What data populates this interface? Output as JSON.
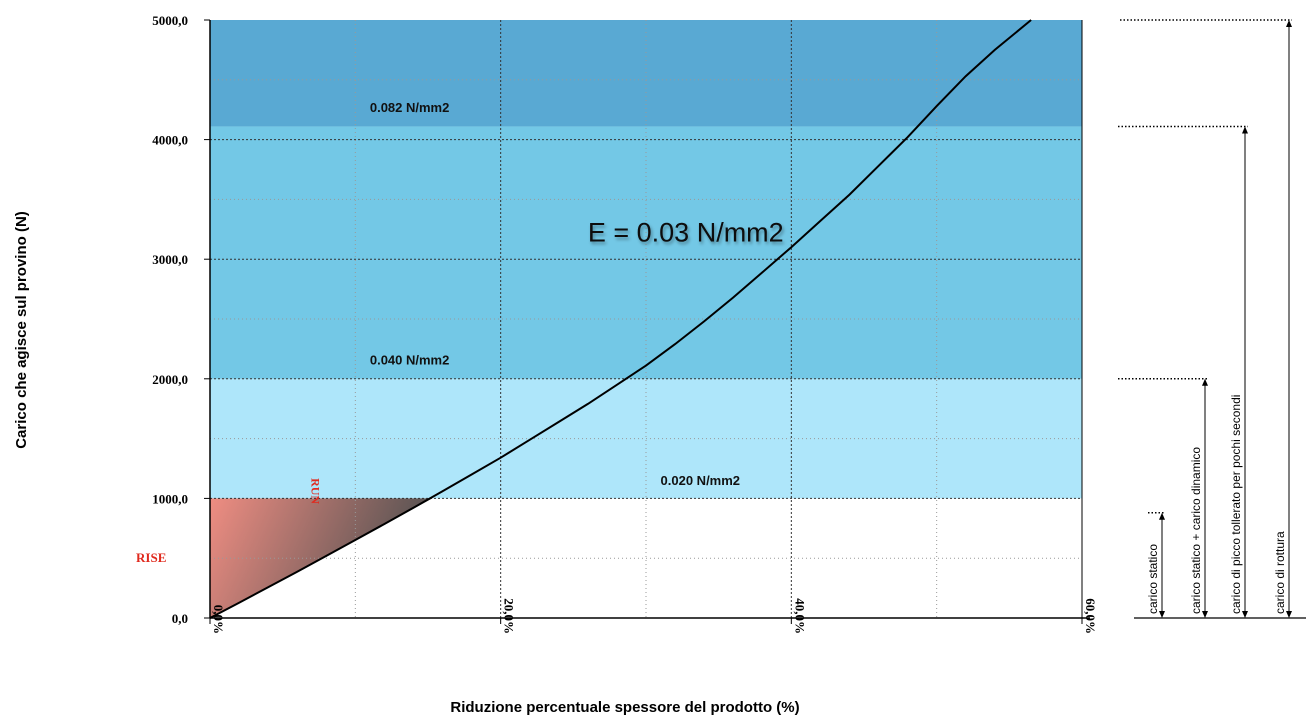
{
  "chart_data": {
    "type": "line",
    "xlabel": "Riduzione percentuale spessore del prodotto (%)",
    "ylabel": "Carico che agisce sul provino (N)",
    "xlim": [
      0,
      60
    ],
    "ylim": [
      0,
      5000
    ],
    "x_ticks": [
      {
        "value": 0,
        "label": "0,0%"
      },
      {
        "value": 20,
        "label": "20,0%"
      },
      {
        "value": 40,
        "label": "40,0%"
      },
      {
        "value": 60,
        "label": "60,0%"
      }
    ],
    "y_ticks": [
      {
        "value": 0,
        "label": "0,0"
      },
      {
        "value": 1000,
        "label": "1000,0"
      },
      {
        "value": 2000,
        "label": "2000,0"
      },
      {
        "value": 3000,
        "label": "3000,0"
      },
      {
        "value": 4000,
        "label": "4000,0"
      },
      {
        "value": 5000,
        "label": "5000,0"
      }
    ],
    "grid": true,
    "series": [
      {
        "x": [
          0,
          2,
          4,
          6,
          8,
          10,
          12,
          14,
          16,
          18,
          20,
          22,
          24,
          26,
          28,
          30,
          32,
          34,
          36,
          38,
          40,
          42,
          44,
          46,
          48,
          50,
          52,
          54,
          56.5
        ],
        "y": [
          0,
          128,
          257,
          387,
          519,
          652,
          786,
          922,
          1060,
          1200,
          1340,
          1490,
          1640,
          1790,
          1950,
          2110,
          2290,
          2480,
          2680,
          2890,
          3100,
          3320,
          3540,
          3780,
          4020,
          4280,
          4530,
          4750,
          5000
        ],
        "color": "#000000"
      }
    ],
    "bands": [
      {
        "from": 0,
        "to": 1000,
        "color": "#ffffff",
        "label": ""
      },
      {
        "from": 1000,
        "to": 2000,
        "color": "#aee6fa",
        "label": "0.020 N/mm2",
        "label_at": [
          31,
          1110
        ]
      },
      {
        "from": 2000,
        "to": 4110,
        "color": "#73c8e6",
        "label": "0.040 N/mm2",
        "label_at": [
          11,
          2120
        ]
      },
      {
        "from": 4110,
        "to": 5000,
        "color": "#59a9d3",
        "label": "0.082 N/mm2",
        "label_at": [
          11,
          4230
        ]
      }
    ],
    "triangle": {
      "x": [
        0,
        15.3
      ],
      "y": [
        0,
        1000
      ],
      "from_color": "#ef8d82",
      "to_color": "#505050"
    },
    "annotations": [
      {
        "text": "E = 0.03 N/mm2",
        "at": [
          26,
          3150
        ]
      },
      {
        "text": "RUN",
        "at": [
          7,
          1170
        ],
        "color": "#e02a1e"
      },
      {
        "text": "RISE",
        "at": [
          -3,
          470
        ],
        "color": "#e02a1e"
      }
    ],
    "brackets": [
      {
        "label": "carico statico",
        "value": 880
      },
      {
        "label": "carico statico + carico dinamico",
        "value": 2000
      },
      {
        "label": "carico di picco tollerato per pochi secondi",
        "value": 4110
      },
      {
        "label": "carico di rottura",
        "value": 5000
      }
    ]
  }
}
